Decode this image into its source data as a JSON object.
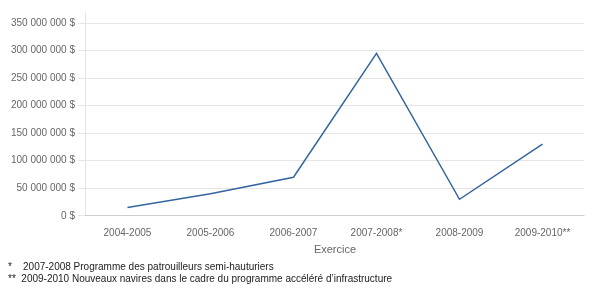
{
  "chart_data": {
    "type": "line",
    "categories": [
      "2004-2005",
      "2005-2006",
      "2006-2007",
      "2007-2008*",
      "2008-2009",
      "2009-2010**"
    ],
    "values": [
      15000000,
      40000000,
      70000000,
      295000000,
      30000000,
      130000000
    ],
    "color": "#3465a0",
    "x_label": "Exercice",
    "ylim": [
      0,
      370000000
    ],
    "yticks": [
      {
        "value": 0,
        "label": "0 $"
      },
      {
        "value": 50000000,
        "label": "50 000 000 $"
      },
      {
        "value": 100000000,
        "label": "100 000 000 $"
      },
      {
        "value": 150000000,
        "label": "150 000 000 $"
      },
      {
        "value": 200000000,
        "label": "200 000 000 $"
      },
      {
        "value": 250000000,
        "label": "250 000 000 $"
      },
      {
        "value": 300000000,
        "label": "300 000 000 $"
      },
      {
        "value": 350000000,
        "label": "350 000 000 $"
      }
    ],
    "grid": true,
    "annotations": [
      "*    2007-2008 Programme des patrouilleurs semi-hauturiers",
      "**  2009‐2010 Nouveaux navires dans le cadre du programme accéléré d’infrastructure"
    ]
  }
}
